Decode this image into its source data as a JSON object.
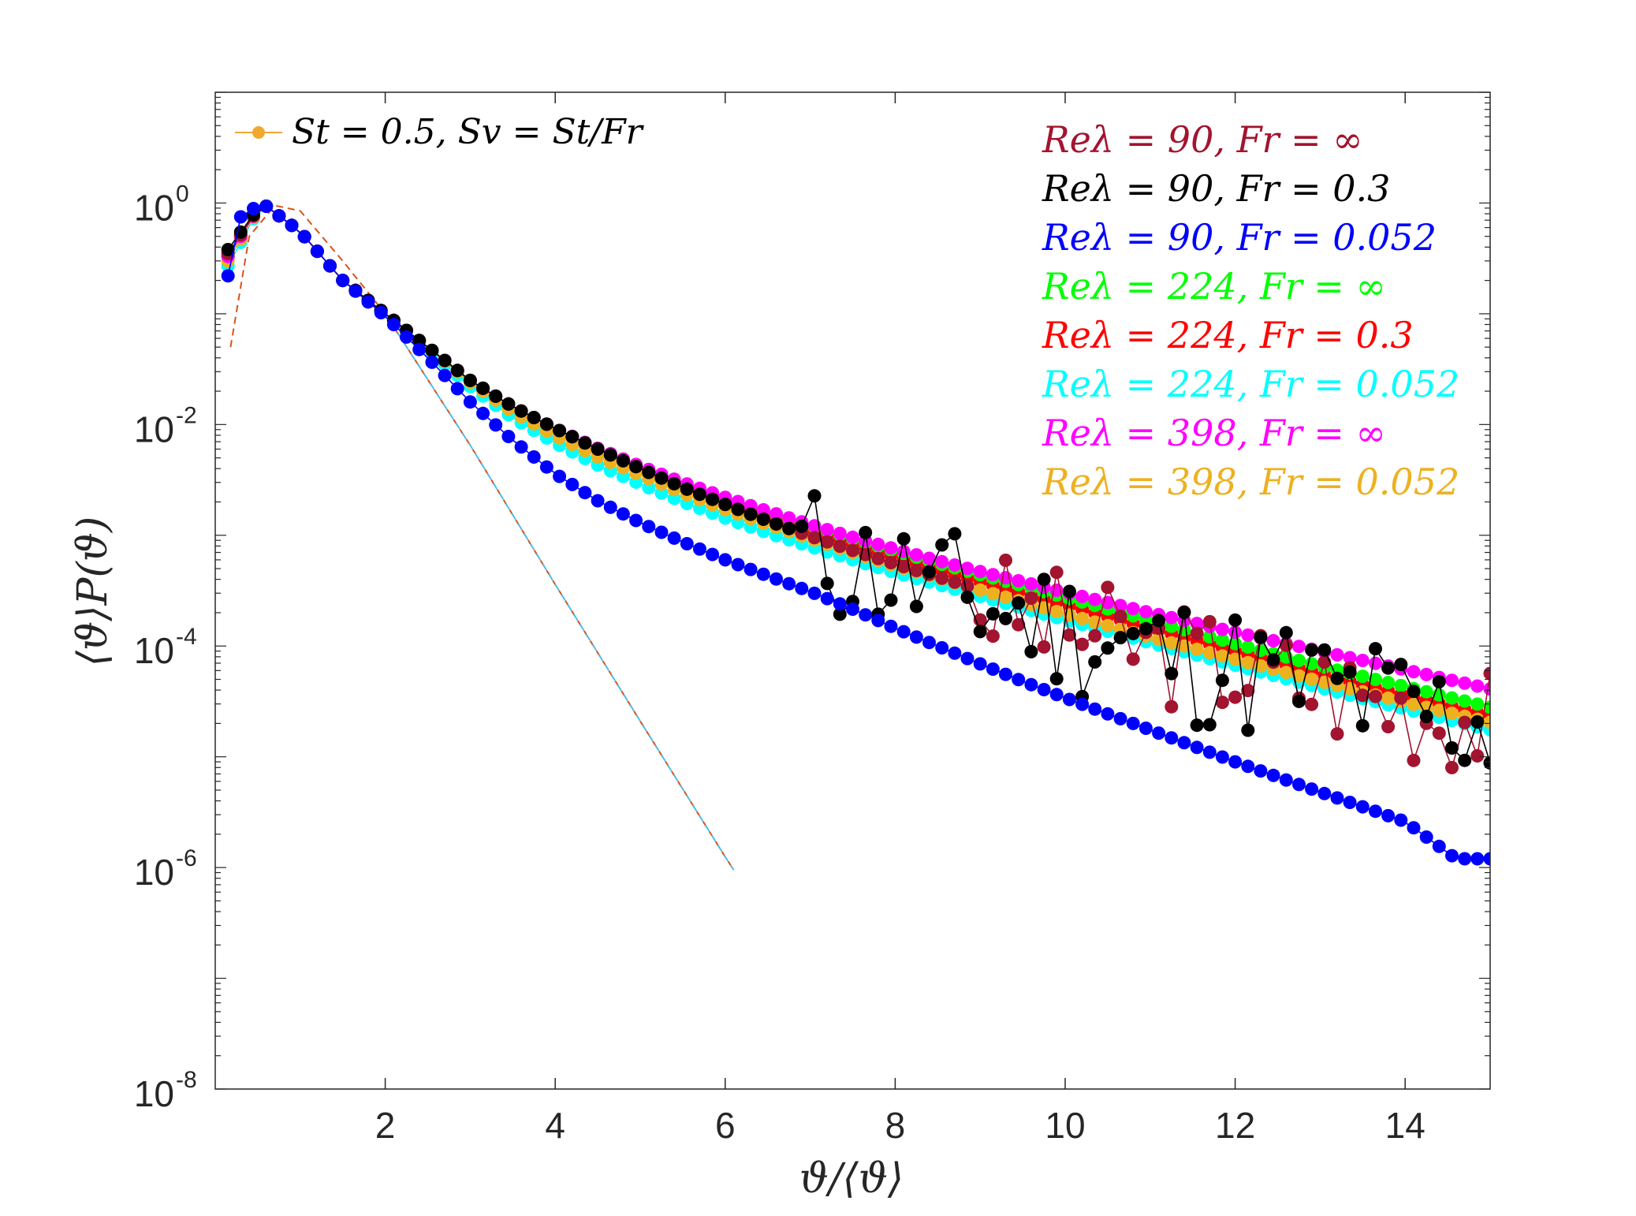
{
  "chart_data": {
    "type": "scatter",
    "title": "",
    "xlabel": "ϑ/⟨ϑ⟩",
    "ylabel": "⟨ϑ⟩P(ϑ)",
    "xlim": [
      0,
      15
    ],
    "ylim": [
      1e-08,
      10
    ],
    "yscale": "log",
    "grid": false,
    "x_ticks": [
      2,
      4,
      6,
      8,
      10,
      12,
      14
    ],
    "y_ticks": [
      {
        "value": 1e-08,
        "base": "10",
        "exp": "-8"
      },
      {
        "value": 1e-06,
        "base": "10",
        "exp": "-6"
      },
      {
        "value": 0.0001,
        "base": "10",
        "exp": "-4"
      },
      {
        "value": 0.01,
        "base": "10",
        "exp": "-2"
      },
      {
        "value": 1,
        "base": "10",
        "exp": "0"
      }
    ],
    "legend_title": "St = 0.5, Sv = St/Fr",
    "legend_title_color": "#f0a830",
    "legend_position": "top-right",
    "x_start": 0.15,
    "x_step": 0.15,
    "series": [
      {
        "name": "Reλ = 90, Fr = ∞",
        "color": "#a2142f",
        "points": [
          [
            0.15,
            0.35
          ],
          [
            0.55,
            1.0
          ],
          [
            1.0,
            0.55
          ],
          [
            1.5,
            0.2
          ],
          [
            2.0,
            0.1
          ],
          [
            2.5,
            0.05
          ],
          [
            3.0,
            0.025
          ],
          [
            3.5,
            0.0145
          ],
          [
            4.0,
            0.0092
          ],
          [
            4.5,
            0.006
          ],
          [
            5.0,
            0.004
          ],
          [
            5.5,
            0.0027
          ],
          [
            6.0,
            0.0019
          ],
          [
            6.5,
            0.00135
          ],
          [
            7.0,
            0.00098
          ],
          [
            7.5,
            0.00073
          ],
          [
            8.0,
            0.00055
          ],
          [
            8.5,
            0.00042
          ],
          [
            9.0,
            0.00032
          ],
          [
            9.5,
            0.00025
          ],
          [
            10.0,
            0.00019
          ],
          [
            11.0,
            0.00012
          ],
          [
            12.0,
            8e-05
          ],
          [
            13.0,
            5.5e-05
          ],
          [
            14.0,
            3.6e-05
          ],
          [
            15.0,
            2.6e-05
          ]
        ],
        "noise_from": 9.0,
        "noise_scale": 0.5,
        "noise_seed": 3
      },
      {
        "name": "Reλ = 90, Fr = 0.3",
        "color": "#000000",
        "points": [
          [
            0.15,
            0.38
          ],
          [
            0.55,
            1.0
          ],
          [
            1.0,
            0.55
          ],
          [
            1.5,
            0.2
          ],
          [
            2.0,
            0.1
          ],
          [
            2.5,
            0.05
          ],
          [
            3.0,
            0.025
          ],
          [
            3.5,
            0.0145
          ],
          [
            4.0,
            0.0092
          ],
          [
            4.5,
            0.006
          ],
          [
            5.0,
            0.004
          ],
          [
            5.5,
            0.0027
          ],
          [
            6.0,
            0.0019
          ],
          [
            6.5,
            0.00135
          ],
          [
            7.0,
            0.00098
          ],
          [
            7.5,
            0.00073
          ],
          [
            8.0,
            0.00055
          ],
          [
            8.5,
            0.00042
          ],
          [
            9.0,
            0.00032
          ],
          [
            9.5,
            0.00025
          ],
          [
            10.0,
            0.00019
          ],
          [
            11.0,
            0.00012
          ],
          [
            12.0,
            8e-05
          ],
          [
            13.0,
            5.5e-05
          ],
          [
            14.0,
            3.6e-05
          ],
          [
            15.0,
            2.6e-05
          ]
        ],
        "noise_from": 6.8,
        "noise_scale": 0.62,
        "noise_seed": 11
      },
      {
        "name": "Reλ = 90, Fr = 0.052",
        "color": "#0000ff",
        "points": [
          [
            0.15,
            0.22
          ],
          [
            0.3,
            0.75
          ],
          [
            0.55,
            1.0
          ],
          [
            1.0,
            0.55
          ],
          [
            1.5,
            0.2
          ],
          [
            2.0,
            0.095
          ],
          [
            2.5,
            0.04
          ],
          [
            3.0,
            0.016
          ],
          [
            3.5,
            0.0072
          ],
          [
            4.0,
            0.0036
          ],
          [
            4.5,
            0.00205
          ],
          [
            5.0,
            0.0013
          ],
          [
            5.5,
            0.00087
          ],
          [
            6.0,
            0.0006
          ],
          [
            6.5,
            0.00043
          ],
          [
            7.0,
            0.00031
          ],
          [
            7.5,
            0.000215
          ],
          [
            8.0,
            0.000145
          ],
          [
            8.5,
            0.0001
          ],
          [
            9.0,
            6.9e-05
          ],
          [
            9.5,
            4.8e-05
          ],
          [
            10.0,
            3.4e-05
          ],
          [
            11.0,
            1.75e-05
          ],
          [
            12.0,
            9e-06
          ],
          [
            13.0,
            4.8e-06
          ],
          [
            14.0,
            2.6e-06
          ],
          [
            14.6,
            1.2e-06
          ],
          [
            15.0,
            1.2e-06
          ]
        ],
        "noise_from": 99,
        "noise_scale": 0,
        "noise_seed": 1
      },
      {
        "name": "Reλ = 224, Fr = ∞",
        "color": "#00ff00",
        "points": [
          [
            0.15,
            0.33
          ],
          [
            0.55,
            1.0
          ],
          [
            1.0,
            0.55
          ],
          [
            1.5,
            0.2
          ],
          [
            2.0,
            0.1
          ],
          [
            2.5,
            0.05
          ],
          [
            3.0,
            0.025
          ],
          [
            3.5,
            0.0145
          ],
          [
            4.0,
            0.0092
          ],
          [
            4.5,
            0.0061
          ],
          [
            5.0,
            0.0042
          ],
          [
            5.5,
            0.003
          ],
          [
            6.0,
            0.0022
          ],
          [
            6.5,
            0.00163
          ],
          [
            7.0,
            0.00122
          ],
          [
            7.5,
            0.00093
          ],
          [
            8.0,
            0.00072
          ],
          [
            8.5,
            0.00056
          ],
          [
            9.0,
            0.00044
          ],
          [
            9.5,
            0.00035
          ],
          [
            10.0,
            0.000275
          ],
          [
            11.0,
            0.00017
          ],
          [
            12.0,
            0.000105
          ],
          [
            13.0,
            6.6e-05
          ],
          [
            14.0,
            4.3e-05
          ],
          [
            15.0,
            2.8e-05
          ]
        ],
        "noise_from": 99,
        "noise_scale": 0,
        "noise_seed": 1
      },
      {
        "name": "Reλ = 224, Fr = 0.3",
        "color": "#ff0000",
        "points": [
          [
            0.15,
            0.33
          ],
          [
            0.55,
            1.0
          ],
          [
            1.0,
            0.55
          ],
          [
            1.5,
            0.2
          ],
          [
            2.0,
            0.1
          ],
          [
            2.5,
            0.05
          ],
          [
            3.0,
            0.025
          ],
          [
            3.5,
            0.0145
          ],
          [
            4.0,
            0.0092
          ],
          [
            4.5,
            0.006
          ],
          [
            5.0,
            0.0041
          ],
          [
            5.5,
            0.0029
          ],
          [
            6.0,
            0.0021
          ],
          [
            6.5,
            0.00152
          ],
          [
            7.0,
            0.00112
          ],
          [
            7.5,
            0.00084
          ],
          [
            8.0,
            0.00064
          ],
          [
            8.5,
            0.00049
          ],
          [
            9.0,
            0.00038
          ],
          [
            9.5,
            0.0003
          ],
          [
            10.0,
            0.000235
          ],
          [
            11.0,
            0.000145
          ],
          [
            12.0,
            9e-05
          ],
          [
            13.0,
            5.6e-05
          ],
          [
            14.0,
            3.6e-05
          ],
          [
            15.0,
            2.35e-05
          ]
        ],
        "noise_from": 99,
        "noise_scale": 0,
        "noise_seed": 1
      },
      {
        "name": "Reλ = 224, Fr = 0.052",
        "color": "#00ffff",
        "points": [
          [
            0.15,
            0.27
          ],
          [
            0.55,
            1.0
          ],
          [
            1.0,
            0.55
          ],
          [
            1.5,
            0.2
          ],
          [
            2.0,
            0.1
          ],
          [
            2.5,
            0.048
          ],
          [
            3.0,
            0.022
          ],
          [
            3.5,
            0.0115
          ],
          [
            4.0,
            0.0068
          ],
          [
            4.5,
            0.0043
          ],
          [
            5.0,
            0.0029
          ],
          [
            5.5,
            0.002
          ],
          [
            6.0,
            0.00143
          ],
          [
            6.5,
            0.00105
          ],
          [
            7.0,
            0.00079
          ],
          [
            7.5,
            0.0006
          ],
          [
            8.0,
            0.00046
          ],
          [
            8.5,
            0.00036
          ],
          [
            9.0,
            0.00028
          ],
          [
            9.5,
            0.00022
          ],
          [
            10.0,
            0.000172
          ],
          [
            11.0,
            0.000107
          ],
          [
            12.0,
            6.7e-05
          ],
          [
            13.0,
            4.2e-05
          ],
          [
            14.0,
            2.7e-05
          ],
          [
            15.0,
            1.75e-05
          ]
        ],
        "noise_from": 99,
        "noise_scale": 0,
        "noise_seed": 1
      },
      {
        "name": "Reλ = 398, Fr = ∞",
        "color": "#ff00ff",
        "points": [
          [
            0.15,
            0.33
          ],
          [
            0.55,
            1.0
          ],
          [
            1.0,
            0.55
          ],
          [
            1.5,
            0.2
          ],
          [
            2.0,
            0.1
          ],
          [
            2.5,
            0.05
          ],
          [
            3.0,
            0.025
          ],
          [
            3.5,
            0.0145
          ],
          [
            4.0,
            0.0092
          ],
          [
            4.5,
            0.0061
          ],
          [
            5.0,
            0.0042
          ],
          [
            5.5,
            0.003
          ],
          [
            6.0,
            0.0022
          ],
          [
            6.5,
            0.00165
          ],
          [
            7.0,
            0.00125
          ],
          [
            7.5,
            0.00096
          ],
          [
            8.0,
            0.00075
          ],
          [
            8.5,
            0.00059
          ],
          [
            9.0,
            0.00047
          ],
          [
            9.5,
            0.00038
          ],
          [
            10.0,
            0.000305
          ],
          [
            11.0,
            0.0002
          ],
          [
            12.0,
            0.000133
          ],
          [
            13.0,
            9e-05
          ],
          [
            14.0,
            6.1e-05
          ],
          [
            15.0,
            4.1e-05
          ]
        ],
        "noise_from": 99,
        "noise_scale": 0,
        "noise_seed": 1
      },
      {
        "name": "Reλ = 398, Fr = 0.052",
        "color": "#edb120",
        "points": [
          [
            0.15,
            0.3
          ],
          [
            0.55,
            1.0
          ],
          [
            1.0,
            0.55
          ],
          [
            1.5,
            0.2
          ],
          [
            2.0,
            0.1
          ],
          [
            2.5,
            0.05
          ],
          [
            3.0,
            0.024
          ],
          [
            3.5,
            0.013
          ],
          [
            4.0,
            0.0079
          ],
          [
            4.5,
            0.0051
          ],
          [
            5.0,
            0.0035
          ],
          [
            5.5,
            0.0024
          ],
          [
            6.0,
            0.0017
          ],
          [
            6.5,
            0.00125
          ],
          [
            7.0,
            0.00093
          ],
          [
            7.5,
            0.0007
          ],
          [
            8.0,
            0.00053
          ],
          [
            8.5,
            0.00041
          ],
          [
            9.0,
            0.00032
          ],
          [
            9.5,
            0.00025
          ],
          [
            10.0,
            0.000195
          ],
          [
            11.0,
            0.00012
          ],
          [
            12.0,
            7.6e-05
          ],
          [
            13.0,
            4.8e-05
          ],
          [
            14.0,
            3.1e-05
          ],
          [
            15.0,
            2.05e-05
          ]
        ],
        "noise_from": 99,
        "noise_scale": 0,
        "noise_seed": 1
      }
    ],
    "reference_curves": [
      {
        "style": "dashed",
        "color": "#d95319",
        "points": [
          [
            0.18,
            0.05
          ],
          [
            0.4,
            0.5
          ],
          [
            0.7,
            0.95
          ],
          [
            1.0,
            0.85
          ],
          [
            1.5,
            0.3
          ],
          [
            2.0,
            0.1
          ],
          [
            3.0,
            0.0065
          ],
          [
            4.0,
            0.00036
          ],
          [
            5.0,
            2.1e-05
          ],
          [
            6.0,
            1.25e-06
          ],
          [
            6.1,
            9.5e-07
          ]
        ]
      },
      {
        "style": "dashed",
        "color": "#4dbeee",
        "points": [
          [
            2.0,
            0.1
          ],
          [
            3.0,
            0.0065
          ],
          [
            4.0,
            0.00036
          ],
          [
            5.0,
            2.1e-05
          ],
          [
            6.0,
            1.25e-06
          ],
          [
            6.1,
            9.5e-07
          ]
        ]
      }
    ]
  }
}
